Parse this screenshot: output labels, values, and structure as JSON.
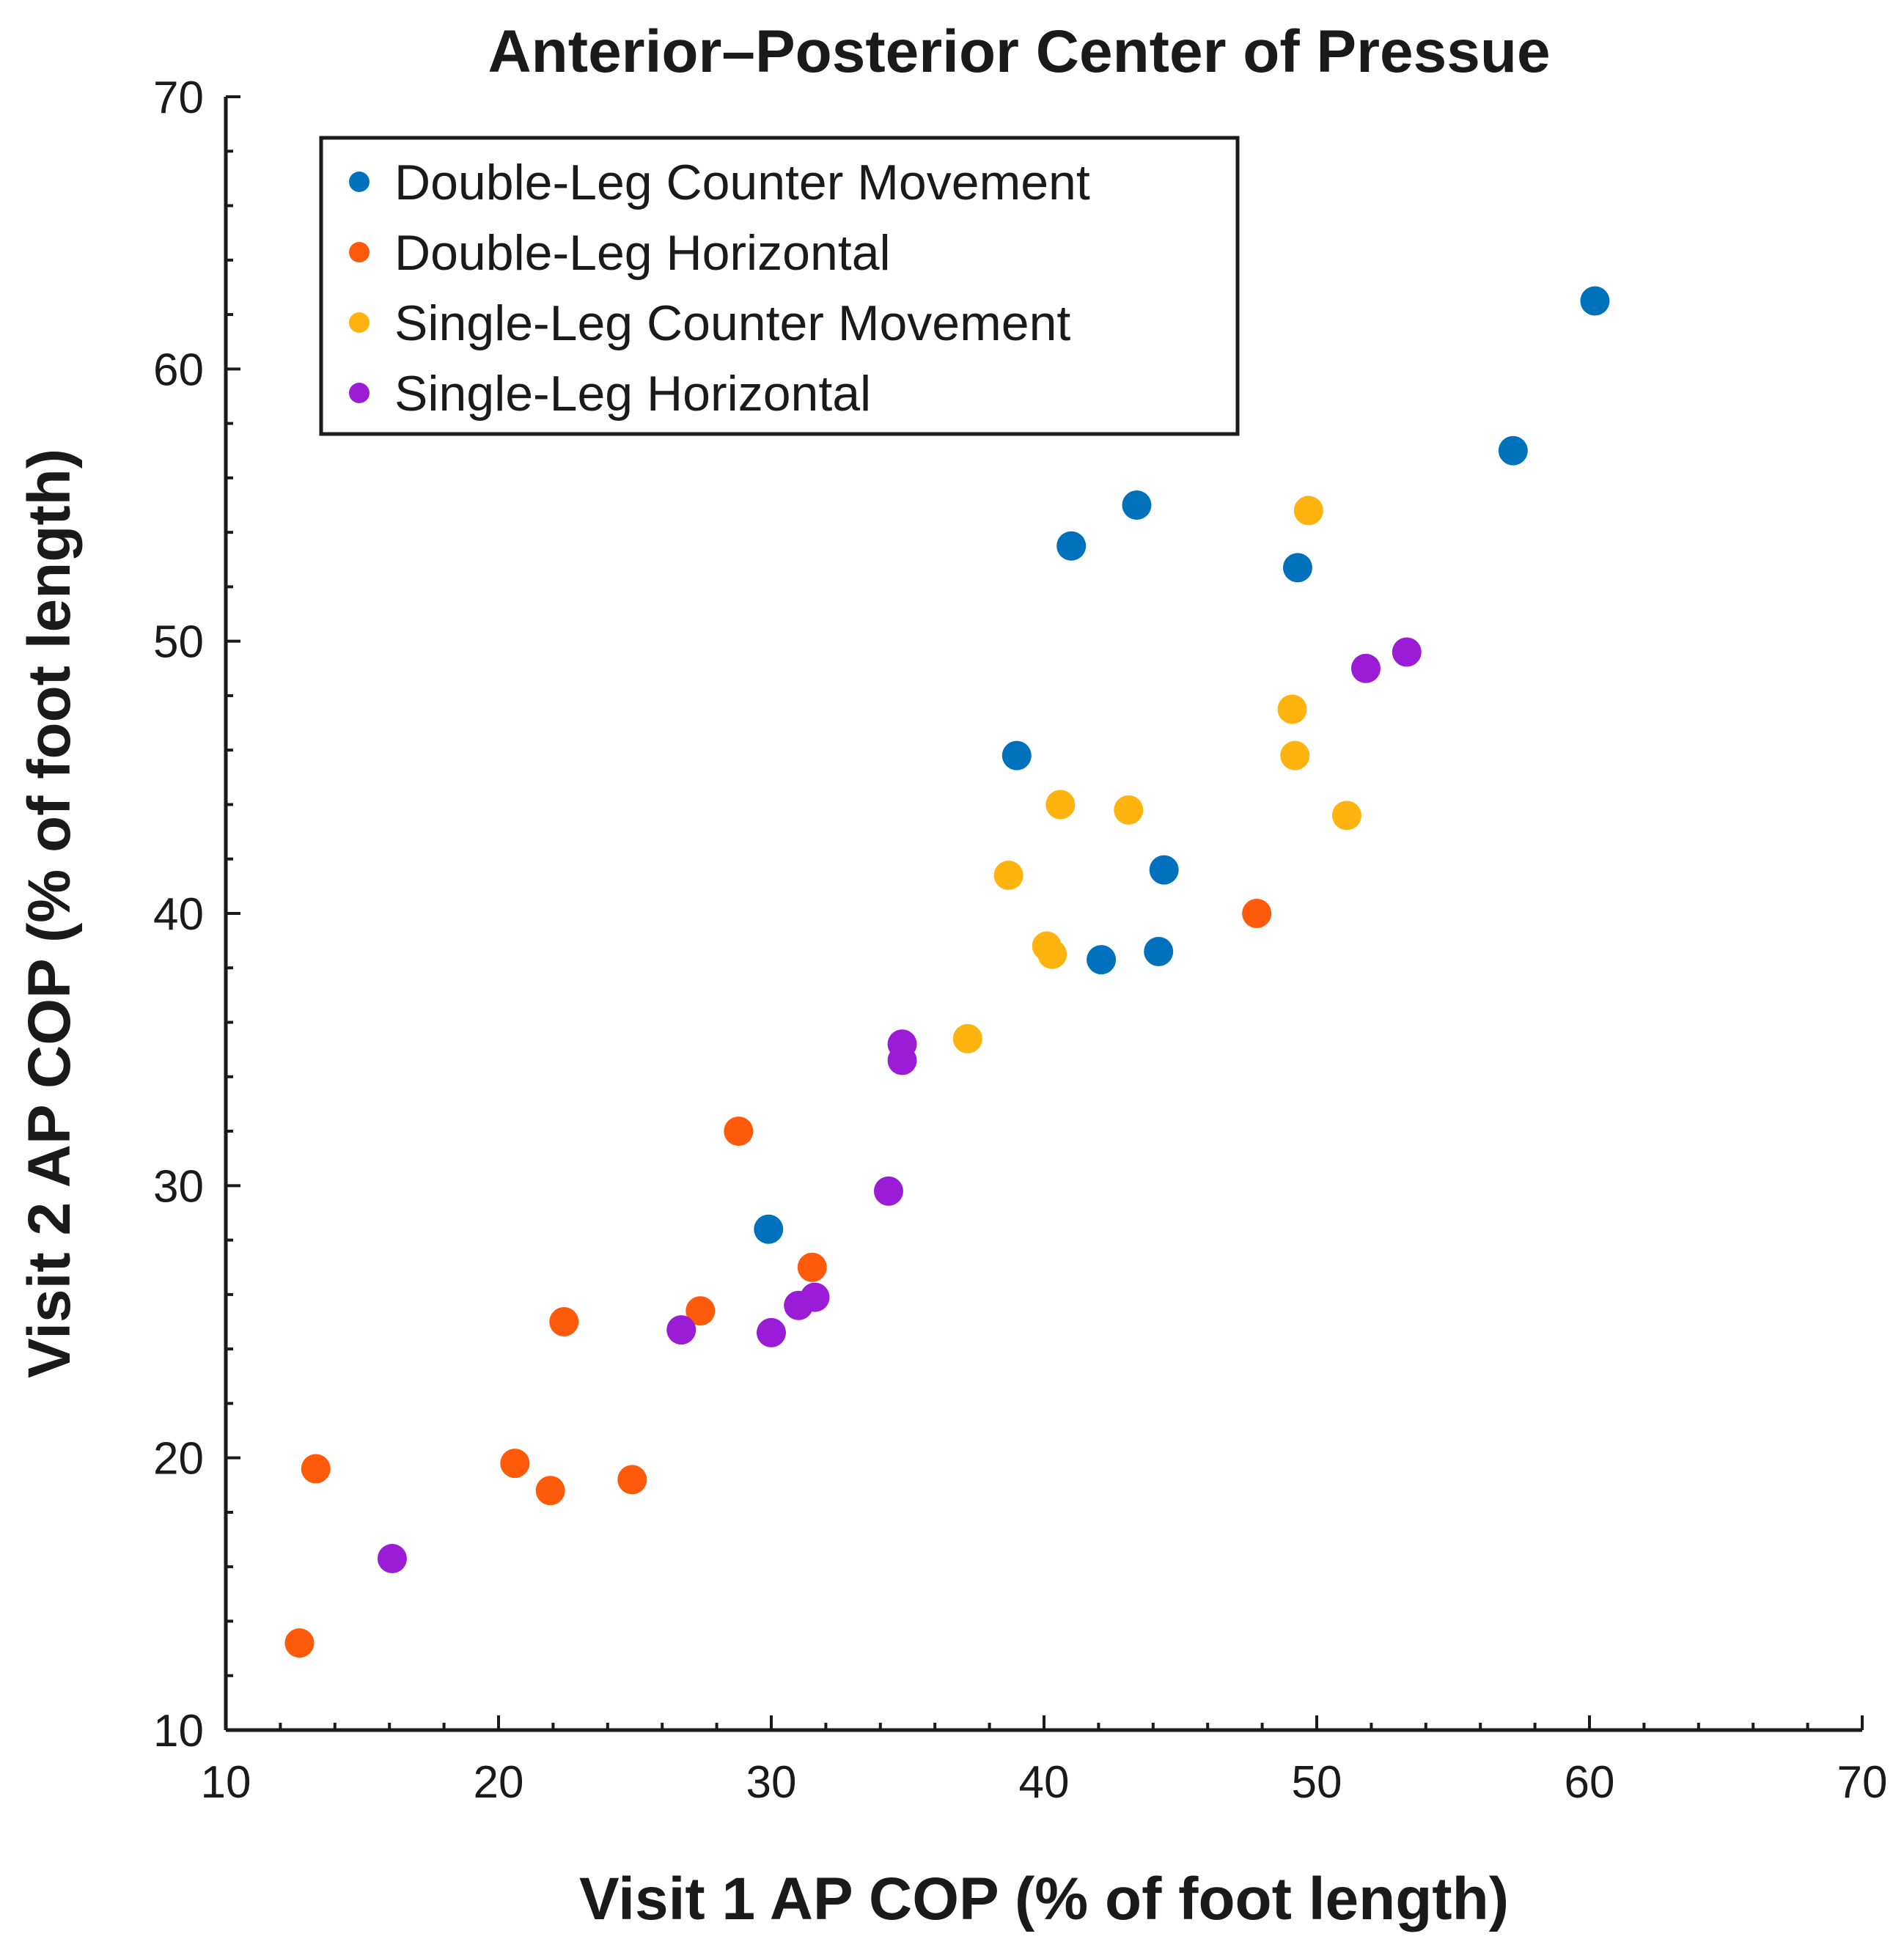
{
  "chart_data": {
    "type": "scatter",
    "title": "Anterior–Posterior Center of Pressue",
    "xlabel": "Visit 1 AP COP (% of foot length)",
    "ylabel": "Visit 2 AP COP (% of foot length)",
    "xlim": [
      10,
      70
    ],
    "ylim": [
      10,
      70
    ],
    "xticks": [
      "10",
      "20",
      "30",
      "40",
      "50",
      "60",
      "70"
    ],
    "yticks": [
      "10",
      "20",
      "30",
      "40",
      "50",
      "60",
      "70"
    ],
    "legend_position": "top-left",
    "series": [
      {
        "name": "Double-Leg Counter Movement",
        "color": "#0072BD",
        "points": [
          [
            60.2,
            62.5
          ],
          [
            57.2,
            57.0
          ],
          [
            43.4,
            55.0
          ],
          [
            41.0,
            53.5
          ],
          [
            49.3,
            52.7
          ],
          [
            39.0,
            45.8
          ],
          [
            44.4,
            41.6
          ],
          [
            44.2,
            38.6
          ],
          [
            42.1,
            38.3
          ],
          [
            29.9,
            28.4
          ]
        ]
      },
      {
        "name": "Double-Leg Horizontal",
        "color": "#FF5A0A",
        "points": [
          [
            47.8,
            40.0
          ],
          [
            28.8,
            32.0
          ],
          [
            31.5,
            27.0
          ],
          [
            27.4,
            25.4
          ],
          [
            22.4,
            25.0
          ],
          [
            13.3,
            19.6
          ],
          [
            20.6,
            19.8
          ],
          [
            21.9,
            18.8
          ],
          [
            24.9,
            19.2
          ],
          [
            12.7,
            13.2
          ]
        ]
      },
      {
        "name": "Single-Leg Counter Movement",
        "color": "#FFB30F",
        "points": [
          [
            49.7,
            54.8
          ],
          [
            49.1,
            47.5
          ],
          [
            49.2,
            45.8
          ],
          [
            40.6,
            44.0
          ],
          [
            43.1,
            43.8
          ],
          [
            51.1,
            43.6
          ],
          [
            38.7,
            41.4
          ],
          [
            40.1,
            38.8
          ],
          [
            40.3,
            38.5
          ],
          [
            37.2,
            35.4
          ]
        ]
      },
      {
        "name": "Single-Leg Horizontal",
        "color": "#9B1CD6",
        "points": [
          [
            53.3,
            49.6
          ],
          [
            51.8,
            49.0
          ],
          [
            34.8,
            35.2
          ],
          [
            34.8,
            34.6
          ],
          [
            34.3,
            29.8
          ],
          [
            31.6,
            25.9
          ],
          [
            31.0,
            25.6
          ],
          [
            30.0,
            24.6
          ],
          [
            26.7,
            24.7
          ],
          [
            16.1,
            16.3
          ]
        ]
      }
    ]
  }
}
